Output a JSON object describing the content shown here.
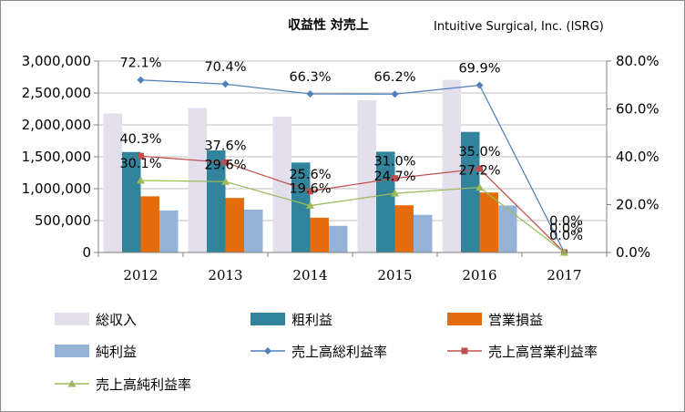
{
  "chart_data": {
    "type": "bar",
    "title": "収益性 対売上",
    "subtitle": "Intuitive Surgical, Inc. (ISRG)",
    "categories": [
      "2012",
      "2013",
      "2014",
      "2015",
      "2016",
      "2017"
    ],
    "y_left": {
      "min": 0,
      "max": 3000000,
      "step": 500000,
      "tick_labels": [
        "0",
        "500,000",
        "1,000,000",
        "1,500,000",
        "2,000,000",
        "2,500,000",
        "3,000,000"
      ]
    },
    "y_right": {
      "min": 0,
      "max": 80,
      "step": 20,
      "tick_labels": [
        "0.0%",
        "20.0%",
        "40.0%",
        "60.0%",
        "80.0%"
      ]
    },
    "grid": true,
    "legend_position": "bottom",
    "bar_series": [
      {
        "name": "総収入",
        "color": "#e4dfec",
        "values": [
          2180000,
          2265000,
          2130000,
          2385000,
          2705000,
          null
        ]
      },
      {
        "name": "粗利益",
        "color": "#31849b",
        "values": [
          1575000,
          1600000,
          1410000,
          1580000,
          1890000,
          null
        ]
      },
      {
        "name": "営業損益",
        "color": "#e46c0a",
        "values": [
          880000,
          855000,
          545000,
          740000,
          940000,
          null
        ]
      },
      {
        "name": "純利益",
        "color": "#95b3d7",
        "values": [
          660000,
          672000,
          418000,
          590000,
          736000,
          null
        ]
      }
    ],
    "line_series": [
      {
        "name": "売上高総利益率",
        "color": "#4f81bd",
        "marker": "diamond",
        "values": [
          72.1,
          70.4,
          66.3,
          66.2,
          69.9,
          0.0
        ],
        "labels": [
          "72.1%",
          "70.4%",
          "66.3%",
          "66.2%",
          "69.9%",
          "0.0%"
        ]
      },
      {
        "name": "売上高営業利益率",
        "color": "#c0504d",
        "marker": "square",
        "values": [
          40.3,
          37.6,
          25.6,
          31.0,
          35.0,
          0.0
        ],
        "labels": [
          "40.3%",
          "37.6%",
          "25.6%",
          "31.0%",
          "35.0%",
          "0.0%"
        ]
      },
      {
        "name": "売上高純利益率",
        "color": "#9bbb59",
        "marker": "triangle",
        "values": [
          30.1,
          29.6,
          19.6,
          24.7,
          27.2,
          0.0
        ],
        "labels": [
          "30.1%",
          "29.6%",
          "19.6%",
          "24.7%",
          "27.2%",
          "0.0%"
        ]
      }
    ]
  }
}
